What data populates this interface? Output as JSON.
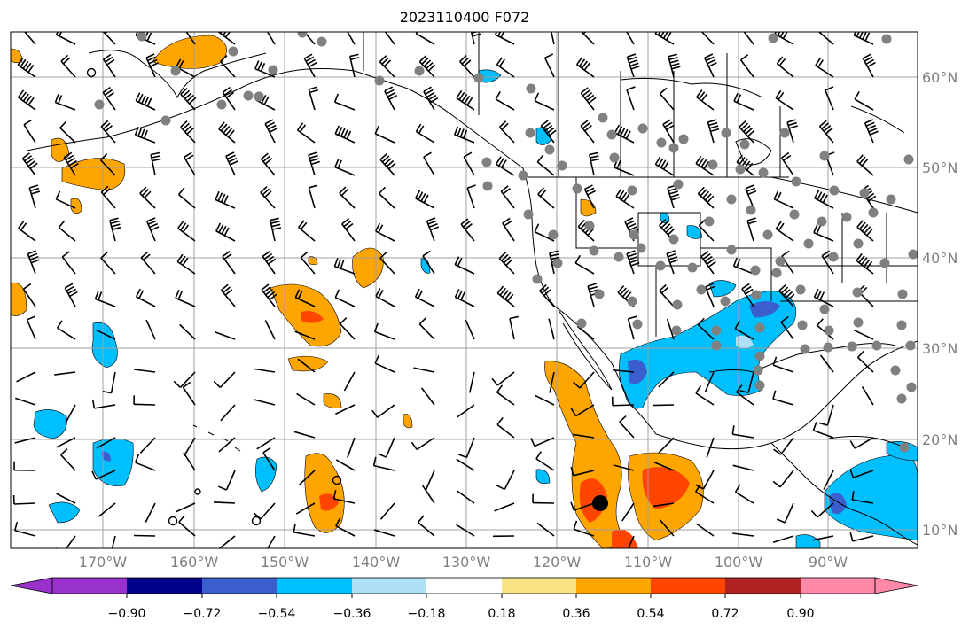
{
  "title": "2023110400 F072",
  "lat_labels": [
    "60°N",
    "50°N",
    "40°N",
    "30°N",
    "20°N",
    "10°N"
  ],
  "lon_labels": [
    "170°W",
    "160°W",
    "150°W",
    "140°W",
    "130°W",
    "120°W",
    "110°W",
    "100°W",
    "90°W"
  ],
  "colorbar": {
    "colors": [
      "#9932cc",
      "#00008b",
      "#3a5fcd",
      "#00bfff",
      "#b0e0f6",
      "#ffffff",
      "#f9e484",
      "#ffa500",
      "#ff4500",
      "#b22222",
      "#ff89a9"
    ],
    "tick_labels": [
      "−0.90",
      "−0.72",
      "−0.54",
      "−0.36",
      "−0.18",
      "0.18",
      "0.36",
      "0.54",
      "0.72",
      "0.90"
    ]
  },
  "colors": {
    "grid": "#a0a0a0",
    "coast": "#000000",
    "station": "#808080",
    "contour_fill_positive": "#ffa500",
    "contour_fill_strong": "#ff4500",
    "contour_fill_negative": "#00bfff",
    "contour_fill_strong_negative": "#3a5fcd"
  }
}
